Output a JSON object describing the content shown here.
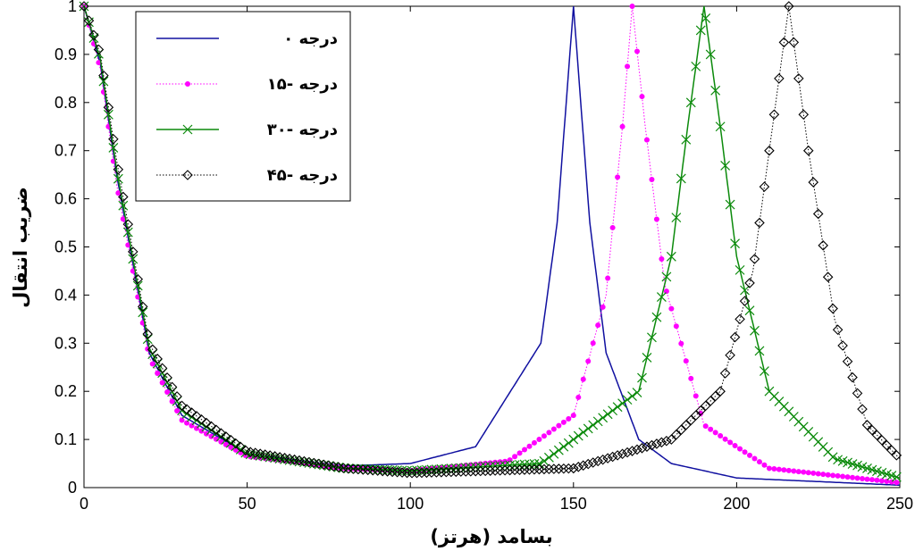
{
  "chart_data": {
    "type": "line",
    "title": "",
    "xlabel": "بسامد (هرتز)",
    "ylabel": "ضریب انتقال",
    "xlim": [
      0,
      250
    ],
    "ylim": [
      0,
      1
    ],
    "xticks": [
      0,
      50,
      100,
      150,
      200,
      250
    ],
    "yticks": [
      0,
      0.1,
      0.2,
      0.3,
      0.4,
      0.5,
      0.6,
      0.7,
      0.8,
      0.9,
      1
    ],
    "grid": false,
    "legend_position": "top-left",
    "series": [
      {
        "name": "۰ درجه",
        "color": "#1010a0",
        "marker": "none",
        "line": "solid",
        "resonance_hz": 150,
        "x": [
          0,
          5,
          10,
          20,
          30,
          50,
          80,
          100,
          120,
          140,
          145,
          150,
          155,
          160,
          170,
          180,
          200,
          250
        ],
        "y": [
          1.0,
          0.88,
          0.65,
          0.28,
          0.15,
          0.07,
          0.045,
          0.05,
          0.085,
          0.3,
          0.55,
          1.0,
          0.55,
          0.28,
          0.1,
          0.05,
          0.02,
          0.005
        ]
      },
      {
        "name": "۱۵- درجه",
        "color": "#ff00ff",
        "marker": "dot",
        "line": "dotted",
        "resonance_hz": 168,
        "x": [
          0,
          5,
          10,
          20,
          30,
          50,
          80,
          100,
          130,
          150,
          160,
          165,
          168,
          172,
          178,
          190,
          210,
          250
        ],
        "y": [
          1.0,
          0.87,
          0.63,
          0.27,
          0.14,
          0.065,
          0.04,
          0.035,
          0.055,
          0.15,
          0.4,
          0.75,
          1.0,
          0.75,
          0.42,
          0.13,
          0.04,
          0.01
        ]
      },
      {
        "name": "۳۰- درجه",
        "color": "#0b8a0b",
        "marker": "x",
        "line": "solid",
        "resonance_hz": 190,
        "x": [
          0,
          5,
          10,
          20,
          30,
          50,
          80,
          100,
          140,
          170,
          180,
          185,
          190,
          195,
          200,
          210,
          230,
          250
        ],
        "y": [
          1.0,
          0.89,
          0.66,
          0.29,
          0.16,
          0.07,
          0.04,
          0.035,
          0.05,
          0.2,
          0.48,
          0.75,
          1.0,
          0.75,
          0.48,
          0.2,
          0.06,
          0.02
        ]
      },
      {
        "name": "۴۵- درجه",
        "color": "#000000",
        "marker": "diamond",
        "line": "dotted",
        "resonance_hz": 216,
        "x": [
          0,
          5,
          10,
          20,
          30,
          50,
          80,
          100,
          150,
          180,
          195,
          205,
          210,
          216,
          222,
          230,
          240,
          250
        ],
        "y": [
          1.0,
          0.9,
          0.68,
          0.3,
          0.17,
          0.075,
          0.04,
          0.03,
          0.04,
          0.1,
          0.2,
          0.45,
          0.7,
          1.0,
          0.7,
          0.35,
          0.13,
          0.06
        ]
      }
    ]
  }
}
